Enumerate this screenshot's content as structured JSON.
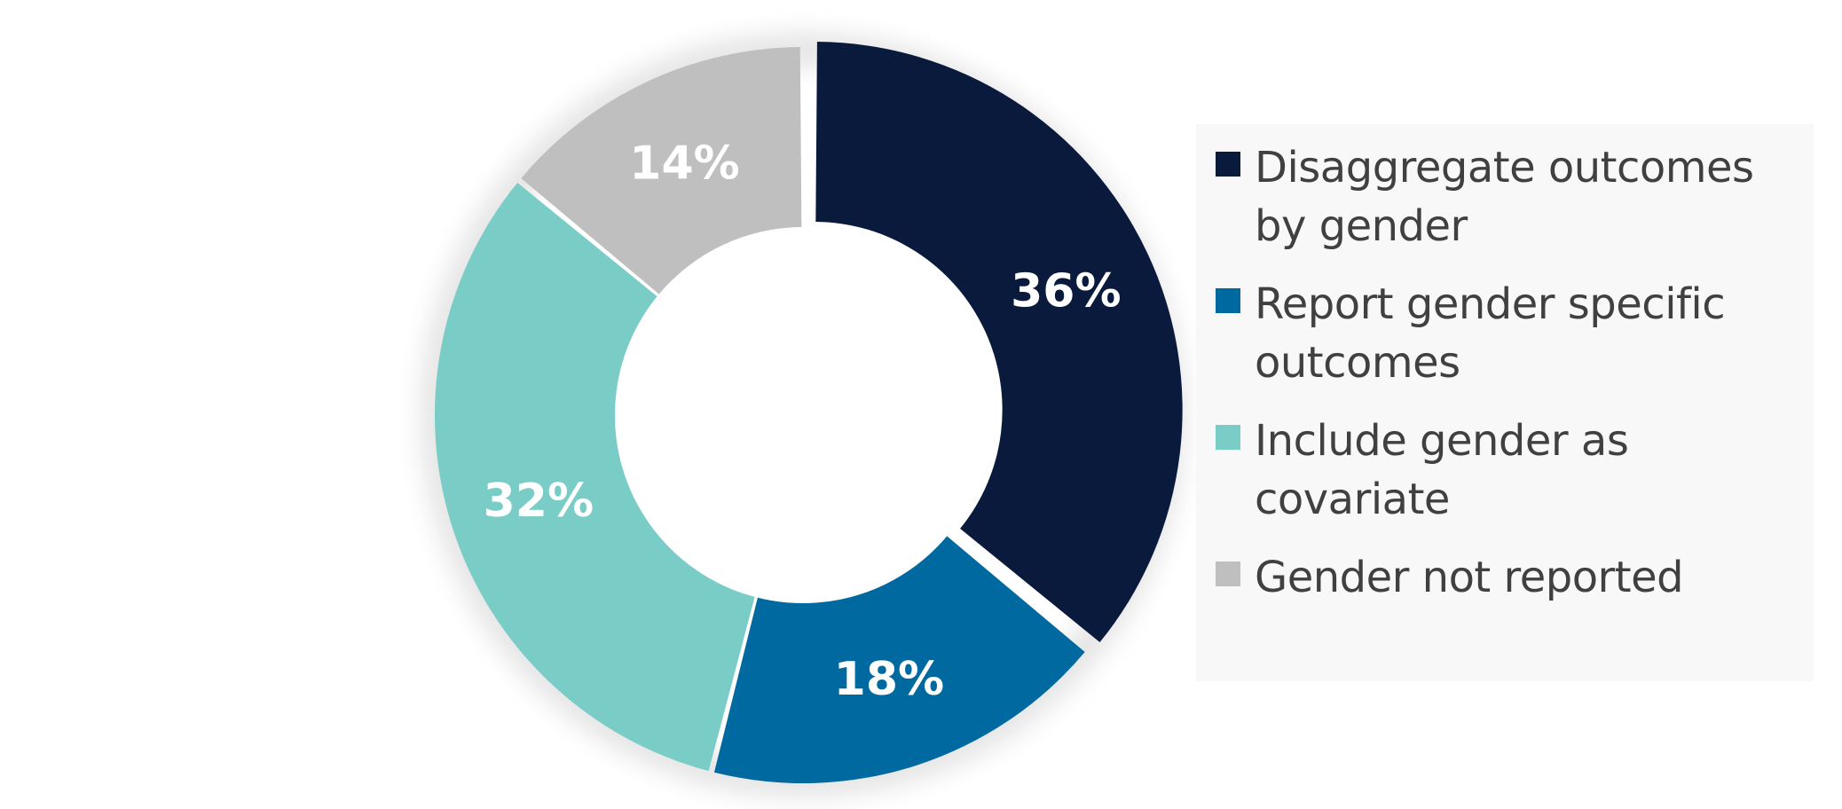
{
  "chart_data": {
    "type": "pie",
    "donut": true,
    "title": "",
    "legend_position": "right",
    "slices": [
      {
        "label": "Disaggregate outcomes by gender",
        "value": 36,
        "display": "36%",
        "color": "#0a1a3c"
      },
      {
        "label": "Report gender specific outcomes",
        "value": 18,
        "display": "18%",
        "color": "#00699f"
      },
      {
        "label": "Include gender as covariate",
        "value": 32,
        "display": "32%",
        "color": "#7acdc7"
      },
      {
        "label": "Gender not reported",
        "value": 14,
        "display": "14%",
        "color": "#bfbfbf"
      }
    ]
  }
}
